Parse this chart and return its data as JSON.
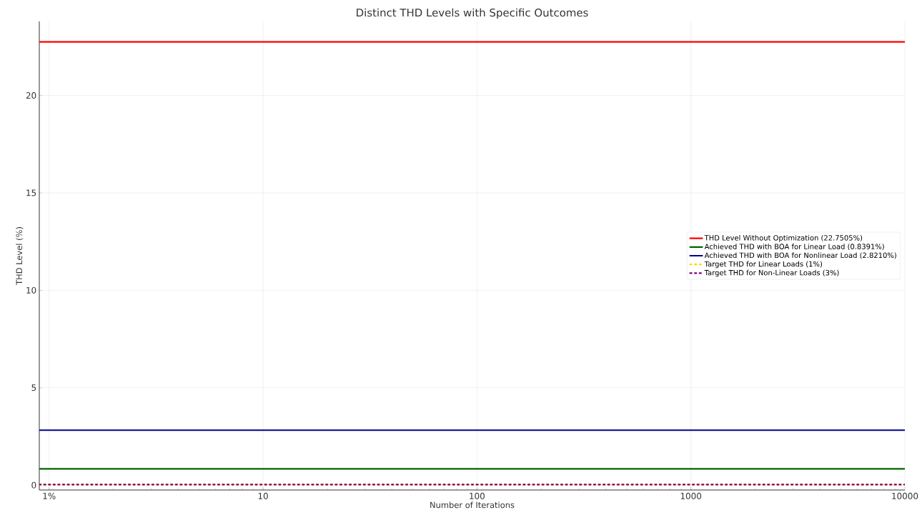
{
  "chart_data": {
    "type": "line",
    "title": "Distinct THD Levels with Specific Outcomes",
    "xlabel": "Number of Iterations",
    "ylabel": "THD Level (%)",
    "x": [
      0.9,
      10000
    ],
    "series": [
      {
        "name": "THD Level Without Optimization (22.7505%)",
        "color": "#ff0000",
        "values": [
          22.7505,
          22.7505
        ],
        "line_style": "solid"
      },
      {
        "name": "Achieved THD with BOA for Linear Load (0.8391%)",
        "color": "#006400",
        "values": [
          0.8391,
          0.8391
        ],
        "line_style": "solid"
      },
      {
        "name": "Achieved THD with BOA for Nonlinear Load (2.8210%)",
        "color": "#00008b",
        "values": [
          2.821,
          2.821
        ],
        "line_style": "solid"
      },
      {
        "name": "Target THD for Linear Loads (1%)",
        "color": "#ffd700",
        "values": [
          0.01,
          0.01
        ],
        "line_style": "dotted"
      },
      {
        "name": "Target THD for Non-Linear Loads (3%)",
        "color": "#800080",
        "values": [
          0.03,
          0.03
        ],
        "line_style": "dotted"
      }
    ],
    "log": "x",
    "xlim": [
      0.9,
      10000
    ],
    "ylim": [
      -0.25,
      23.8
    ],
    "xticks": [
      {
        "value": 1,
        "label": "1%"
      },
      10,
      100,
      1000,
      10000
    ],
    "yticks": [
      0,
      5,
      10,
      15,
      20
    ],
    "grid": true,
    "legend": "right",
    "marker": "none"
  }
}
